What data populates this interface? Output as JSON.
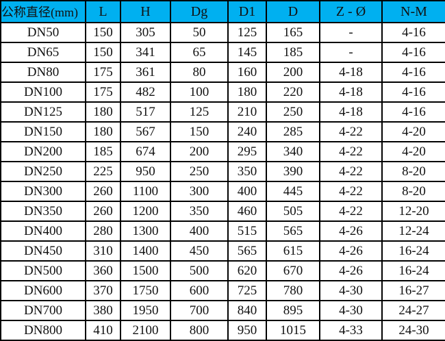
{
  "header_color": "#00B0F0",
  "columns": [
    "公称直径(mm)",
    "L",
    "H",
    "Dg",
    "D1",
    "D",
    "Z - Ø",
    "N-M"
  ],
  "rows": [
    [
      "DN50",
      "150",
      "305",
      "50",
      "125",
      "165",
      "-",
      "4-16"
    ],
    [
      "DN65",
      "150",
      "341",
      "65",
      "145",
      "185",
      "-",
      "4-16"
    ],
    [
      "DN80",
      "175",
      "361",
      "80",
      "160",
      "200",
      "4-18",
      "4-16"
    ],
    [
      "DN100",
      "175",
      "482",
      "100",
      "180",
      "220",
      "4-18",
      "4-16"
    ],
    [
      "DN125",
      "180",
      "517",
      "125",
      "210",
      "250",
      "4-18",
      "4-16"
    ],
    [
      "DN150",
      "180",
      "567",
      "150",
      "240",
      "285",
      "4-22",
      "4-20"
    ],
    [
      "DN200",
      "185",
      "674",
      "200",
      "295",
      "340",
      "4-22",
      "4-20"
    ],
    [
      "DN250",
      "225",
      "950",
      "250",
      "350",
      "390",
      "4-22",
      "8-20"
    ],
    [
      "DN300",
      "260",
      "1100",
      "300",
      "400",
      "445",
      "4-22",
      "8-20"
    ],
    [
      "DN350",
      "260",
      "1200",
      "350",
      "460",
      "505",
      "4-22",
      "12-20"
    ],
    [
      "DN400",
      "280",
      "1300",
      "400",
      "515",
      "565",
      "4-26",
      "12-24"
    ],
    [
      "DN450",
      "310",
      "1400",
      "450",
      "565",
      "615",
      "4-26",
      "16-24"
    ],
    [
      "DN500",
      "360",
      "1500",
      "500",
      "620",
      "670",
      "4-26",
      "16-24"
    ],
    [
      "DN600",
      "370",
      "1750",
      "600",
      "725",
      "780",
      "4-30",
      "16-27"
    ],
    [
      "DN700",
      "380",
      "1950",
      "700",
      "840",
      "895",
      "4-30",
      "24-27"
    ],
    [
      "DN800",
      "410",
      "2100",
      "800",
      "950",
      "1015",
      "4-33",
      "24-30"
    ]
  ]
}
